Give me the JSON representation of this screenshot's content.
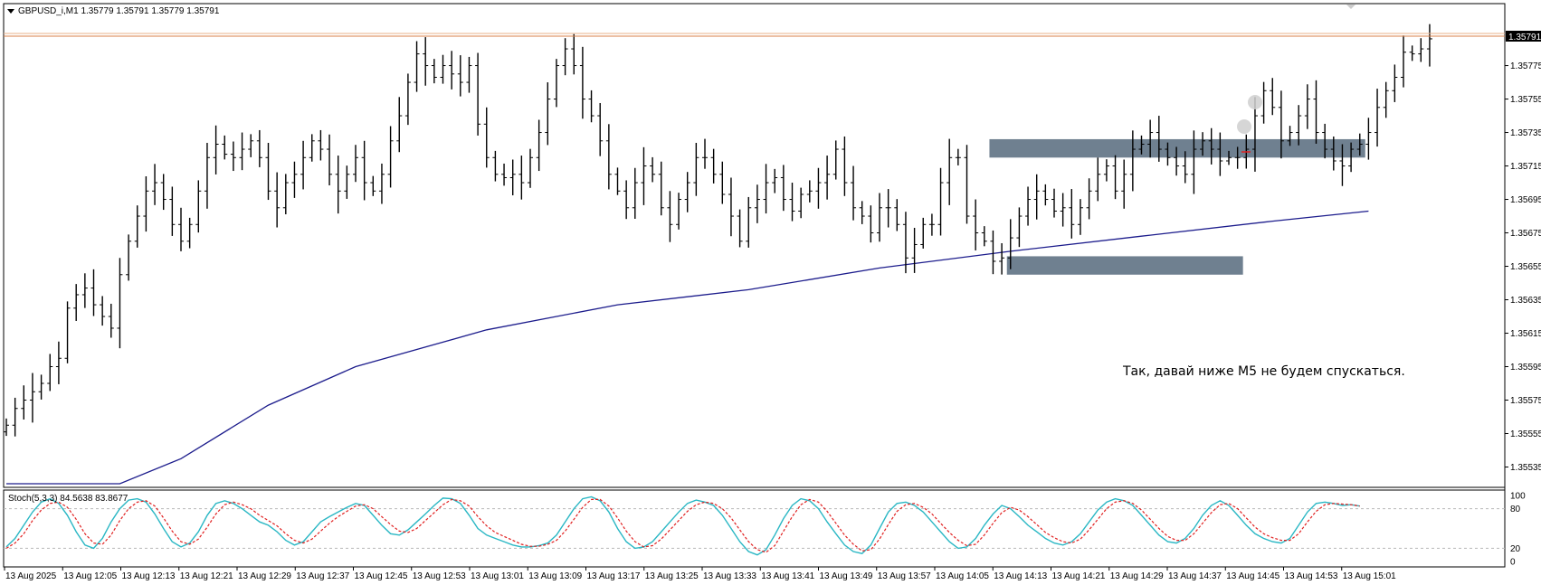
{
  "window": {
    "symbol_title": "GBPUSD_i,M1  1.35779 1.35791 1.35779 1.35791",
    "menu_arrow": "triangle-down-icon"
  },
  "annotation": "Так, давай ниже M5 не будем спускаться.",
  "price_axis": {
    "ticks": [
      "1.35775",
      "1.35755",
      "1.35735",
      "1.35715",
      "1.35695",
      "1.35675",
      "1.35655",
      "1.35635",
      "1.35615",
      "1.35595",
      "1.35575",
      "1.35555",
      "1.35535"
    ],
    "current_price": "1.35791"
  },
  "time_axis": {
    "ticks": [
      "13 Aug 2025",
      "13 Aug 12:05",
      "13 Aug 12:13",
      "13 Aug 12:21",
      "13 Aug 12:29",
      "13 Aug 12:37",
      "13 Aug 12:45",
      "13 Aug 12:53",
      "13 Aug 13:01",
      "13 Aug 13:09",
      "13 Aug 13:17",
      "13 Aug 13:25",
      "13 Aug 13:33",
      "13 Aug 13:41",
      "13 Aug 13:49",
      "13 Aug 13:57",
      "13 Aug 14:05",
      "13 Aug 14:13",
      "13 Aug 14:21",
      "13 Aug 14:29",
      "13 Aug 14:37",
      "13 Aug 14:45",
      "13 Aug 14:53",
      "13 Aug 15:01"
    ]
  },
  "stoch": {
    "title": "Stoch(5,3,3) 84.5638 83.8677",
    "levels": [
      "100",
      "80",
      "20",
      "0"
    ]
  },
  "colors": {
    "zone": "#6f8090",
    "ma": "#1c1c8c",
    "price_line": "#d9824a",
    "stoch_main": "#2ab7c4",
    "stoch_signal": "#e02020"
  },
  "chart_data": {
    "type": "ohlc",
    "ylim": [
      1.35525,
      1.35798
    ],
    "closes": [
      1.3556,
      1.3557,
      1.35575,
      1.3558,
      1.35585,
      1.35595,
      1.356,
      1.3563,
      1.35638,
      1.35642,
      1.35632,
      1.35625,
      1.35618,
      1.3565,
      1.3567,
      1.35685,
      1.357,
      1.35705,
      1.35695,
      1.3568,
      1.3567,
      1.3568,
      1.357,
      1.3572,
      1.35728,
      1.35722,
      1.3572,
      1.35725,
      1.3573,
      1.3572,
      1.357,
      1.3569,
      1.35705,
      1.3571,
      1.3572,
      1.3573,
      1.35725,
      1.3571,
      1.357,
      1.3571,
      1.3572,
      1.35705,
      1.357,
      1.3571,
      1.3573,
      1.35745,
      1.35765,
      1.35782,
      1.35775,
      1.35768,
      1.35775,
      1.3577,
      1.35765,
      1.35775,
      1.3574,
      1.3572,
      1.3571,
      1.35708,
      1.3571,
      1.35705,
      1.3572,
      1.35735,
      1.35755,
      1.35775,
      1.35785,
      1.35775,
      1.35755,
      1.35745,
      1.3573,
      1.3571,
      1.357,
      1.3569,
      1.35705,
      1.35715,
      1.3571,
      1.3569,
      1.3568,
      1.35695,
      1.35705,
      1.3572,
      1.3572,
      1.3571,
      1.35698,
      1.35685,
      1.3567,
      1.3569,
      1.35695,
      1.35705,
      1.35708,
      1.35695,
      1.35688,
      1.35698,
      1.357,
      1.35705,
      1.3571,
      1.35725,
      1.35705,
      1.3569,
      1.35685,
      1.35675,
      1.3569,
      1.3569,
      1.3568,
      1.3566,
      1.35668,
      1.3568,
      1.3568,
      1.35705,
      1.3572,
      1.3572,
      1.35685,
      1.35675,
      1.3567,
      1.35658,
      1.3566,
      1.35672,
      1.35685,
      1.35695,
      1.357,
      1.35695,
      1.35688,
      1.3569,
      1.3568,
      1.3569,
      1.357,
      1.3571,
      1.35715,
      1.357,
      1.3571,
      1.35725,
      1.35728,
      1.35735,
      1.35725,
      1.3572,
      1.35715,
      1.3571,
      1.35725,
      1.3573,
      1.35725,
      1.35718,
      1.3572,
      1.3572,
      1.35725,
      1.35745,
      1.3576,
      1.3575,
      1.3573,
      1.35735,
      1.35745,
      1.35755,
      1.35735,
      1.35725,
      1.35718,
      1.35715,
      1.35725,
      1.35728,
      1.35735,
      1.3575,
      1.3576,
      1.35768,
      1.35783,
      1.35782,
      1.35785,
      1.35791
    ],
    "ma": [
      [
        0,
        1.35525
      ],
      [
        13,
        1.35525
      ],
      [
        20,
        1.3554
      ],
      [
        30,
        1.35572
      ],
      [
        40,
        1.35595
      ],
      [
        55,
        1.35617
      ],
      [
        70,
        1.35632
      ],
      [
        85,
        1.35641
      ],
      [
        100,
        1.35654
      ],
      [
        115,
        1.35664
      ],
      [
        130,
        1.35673
      ],
      [
        145,
        1.35682
      ],
      [
        156,
        1.35688
      ]
    ],
    "zones": [
      {
        "from": 113,
        "to": 155,
        "low": 1.3572,
        "high": 1.35731
      },
      {
        "from": 115,
        "to": 141,
        "low": 1.3565,
        "high": 1.35661
      }
    ],
    "stoch_main": [
      22,
      35,
      55,
      75,
      90,
      95,
      88,
      70,
      45,
      25,
      20,
      35,
      60,
      80,
      93,
      95,
      90,
      72,
      50,
      30,
      22,
      28,
      45,
      70,
      88,
      92,
      88,
      80,
      70,
      60,
      55,
      45,
      32,
      25,
      30,
      45,
      60,
      68,
      75,
      82,
      88,
      85,
      70,
      55,
      42,
      40,
      48,
      60,
      72,
      85,
      96,
      95,
      88,
      70,
      50,
      40,
      35,
      30,
      25,
      22,
      22,
      24,
      28,
      40,
      60,
      80,
      95,
      98,
      92,
      75,
      50,
      30,
      20,
      22,
      30,
      45,
      60,
      75,
      88,
      93,
      90,
      85,
      70,
      50,
      30,
      15,
      10,
      18,
      40,
      65,
      85,
      95,
      92,
      80,
      60,
      42,
      25,
      15,
      12,
      25,
      50,
      75,
      88,
      90,
      85,
      75,
      60,
      45,
      30,
      20,
      22,
      35,
      55,
      72,
      85,
      80,
      68,
      55,
      45,
      35,
      28,
      25,
      30,
      42,
      60,
      78,
      90,
      95,
      92,
      85,
      70,
      55,
      40,
      30,
      28,
      35,
      50,
      70,
      85,
      92,
      85,
      70,
      55,
      42,
      35,
      30,
      28,
      35,
      55,
      75,
      88,
      90,
      88,
      85,
      86,
      84
    ],
    "stoch_signal": [
      20,
      28,
      42,
      62,
      78,
      88,
      90,
      82,
      64,
      42,
      28,
      26,
      40,
      62,
      80,
      90,
      92,
      84,
      66,
      46,
      30,
      26,
      34,
      52,
      72,
      86,
      90,
      86,
      80,
      70,
      62,
      54,
      42,
      32,
      28,
      34,
      46,
      58,
      68,
      76,
      84,
      86,
      80,
      68,
      56,
      46,
      44,
      50,
      62,
      74,
      86,
      94,
      92,
      84,
      68,
      54,
      44,
      38,
      32,
      26,
      23,
      23,
      26,
      32,
      46,
      64,
      82,
      94,
      94,
      84,
      66,
      46,
      30,
      22,
      24,
      34,
      48,
      62,
      76,
      86,
      90,
      88,
      80,
      66,
      48,
      30,
      18,
      14,
      24,
      46,
      68,
      86,
      94,
      90,
      76,
      58,
      40,
      26,
      16,
      18,
      34,
      56,
      76,
      86,
      88,
      82,
      72,
      58,
      44,
      32,
      24,
      26,
      40,
      58,
      74,
      82,
      78,
      68,
      56,
      44,
      36,
      30,
      28,
      34,
      48,
      64,
      80,
      90,
      92,
      88,
      78,
      64,
      50,
      38,
      32,
      32,
      42,
      58,
      74,
      86,
      88,
      80,
      66,
      52,
      42,
      36,
      32,
      32,
      42,
      60,
      76,
      86,
      88,
      87,
      86,
      84
    ]
  }
}
